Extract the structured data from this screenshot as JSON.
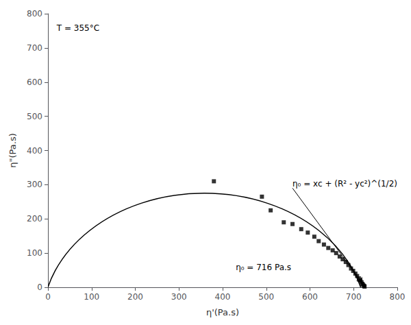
{
  "chart_data": {
    "type": "scatter",
    "xlabel": "η'(Pa.s)",
    "ylabel": "η\"(Pa.s)",
    "xlim": [
      0,
      800
    ],
    "ylim": [
      0,
      800
    ],
    "xticks": [
      0,
      100,
      200,
      300,
      400,
      500,
      600,
      700,
      800
    ],
    "yticks": [
      0,
      100,
      200,
      300,
      400,
      500,
      600,
      700,
      800
    ],
    "grid": false,
    "x": [
      380,
      490,
      510,
      540,
      560,
      580,
      595,
      610,
      620,
      632,
      642,
      652,
      660,
      668,
      675,
      682,
      688,
      694,
      699,
      704,
      708,
      712,
      715,
      718,
      720,
      722,
      724,
      725
    ],
    "values": [
      310,
      265,
      225,
      190,
      185,
      170,
      160,
      148,
      135,
      125,
      115,
      108,
      100,
      90,
      82,
      74,
      65,
      55,
      48,
      40,
      33,
      26,
      20,
      15,
      10,
      7,
      4,
      2
    ],
    "color": "#000000",
    "marker": "square",
    "fit_circle": {
      "center_x": 358,
      "center_y": -95.5,
      "radius": 370.5,
      "color": "#000000"
    },
    "annotations": [
      {
        "text": "T = 355°C",
        "x": 20,
        "y": 770
      },
      {
        "text": "η₀ = xc + (R² - yc²)^(1/2)",
        "x": 560,
        "y": 290,
        "arrow_to": [
          720,
          12
        ]
      },
      {
        "text": "η₀ = 716 Pa.s",
        "x": 430,
        "y": 70
      }
    ]
  }
}
